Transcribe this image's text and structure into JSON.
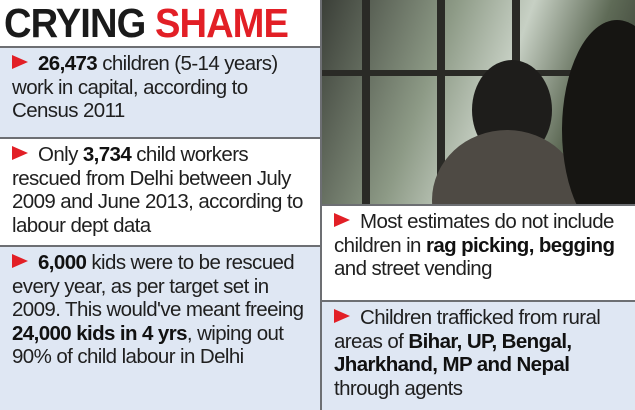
{
  "title": {
    "part1": "CRYING ",
    "part2": "SHAME"
  },
  "colors": {
    "accent": "#e21f26",
    "panel_blue": "#dfe7f3",
    "border": "#6d6f73"
  },
  "icons": {
    "bullet": "red-arrowhead-icon"
  },
  "photo": {
    "description_icon": "photo"
  },
  "facts": [
    {
      "parts": [
        {
          "b": "26,473"
        },
        {
          "t": " children (5-14 years) work in capital, according to Census 2011"
        }
      ]
    },
    {
      "parts": [
        {
          "t": "Only "
        },
        {
          "b": "3,734"
        },
        {
          "t": " child workers rescued from Delhi between July 2009 and June 2013, according to labour dept data"
        }
      ]
    },
    {
      "parts": [
        {
          "b": "6,000"
        },
        {
          "t": " kids were to be rescued every year, as per target set in 2009. This would've meant freeing "
        },
        {
          "b": "24,000 kids in 4 yrs"
        },
        {
          "t": ", wiping out 90% of child labour in Delhi"
        }
      ]
    },
    {
      "parts": [
        {
          "t": "Most estimates do not include children in "
        },
        {
          "b": "rag picking, begging"
        },
        {
          "t": " and street vending"
        }
      ]
    },
    {
      "parts": [
        {
          "t": "Children trafficked from rural areas of "
        },
        {
          "b": "Bihar, UP, Bengal, Jharkhand, MP and Nepal"
        },
        {
          "t": " through agents"
        }
      ]
    }
  ]
}
